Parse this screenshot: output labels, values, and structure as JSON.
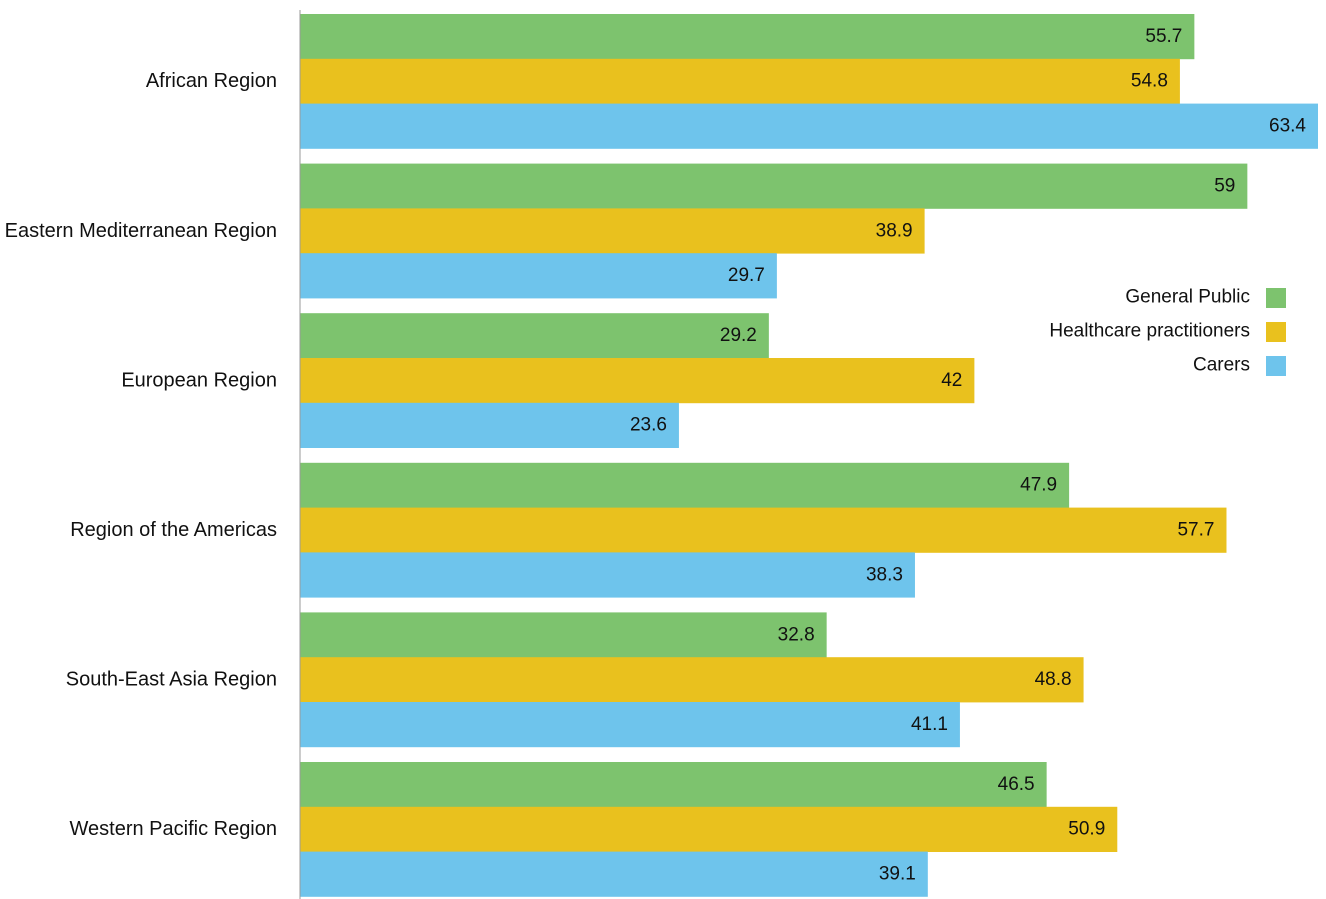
{
  "chart_data": {
    "type": "bar",
    "orientation": "horizontal",
    "title": "",
    "xlabel": "",
    "ylabel": "",
    "categories": [
      "African Region",
      "Eastern Mediterranean Region",
      "European Region",
      "Region of the Americas",
      "South-East Asia Region",
      "Western Pacific Region"
    ],
    "series": [
      {
        "name": "General Public",
        "color": "#7dc36e",
        "values": [
          55.7,
          59,
          29.2,
          47.9,
          32.8,
          46.5
        ]
      },
      {
        "name": "Healthcare practitioners",
        "color": "#e9c11e",
        "values": [
          54.8,
          38.9,
          42,
          57.7,
          48.8,
          50.9
        ]
      },
      {
        "name": "Carers",
        "color": "#6ec4ec",
        "values": [
          63.4,
          29.7,
          23.6,
          38.3,
          41.1,
          39.1
        ]
      }
    ],
    "xlim": [
      0,
      66
    ],
    "grid": false,
    "data_labels": true,
    "legend_position": "right"
  }
}
